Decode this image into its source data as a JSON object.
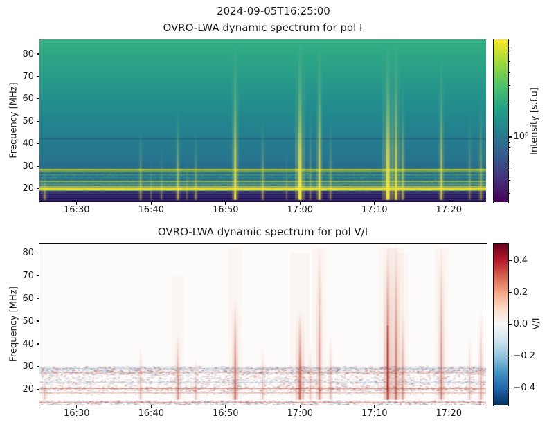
{
  "figure": {
    "suptitle": "2024-09-05T16:25:00",
    "background": "#ffffff",
    "text_color": "#1a1a1a"
  },
  "chart_data": [
    {
      "type": "heatmap",
      "title": "OVRO-LWA dynamic spectrum for pol I",
      "xlabel": "",
      "ylabel": "Frequency [MHz]",
      "time_start": "16:25:00",
      "time_end": "17:25:00",
      "x_total_minutes": 60,
      "xticks": [
        {
          "minute": 5,
          "label": "16:30"
        },
        {
          "minute": 15,
          "label": "16:40"
        },
        {
          "minute": 25,
          "label": "16:50"
        },
        {
          "minute": 35,
          "label": "17:00"
        },
        {
          "minute": 45,
          "label": "17:10"
        },
        {
          "minute": 55,
          "label": "17:20"
        }
      ],
      "yticks": [
        20,
        30,
        40,
        50,
        60,
        70,
        80
      ],
      "ylim": [
        14,
        86.5
      ],
      "grid": false,
      "colorbar": {
        "label": "Intensity [s.f.u]",
        "scale": "log",
        "vmin": 0.25,
        "vmax": 8,
        "major_ticks": [
          {
            "value": 1,
            "label": "10⁰"
          }
        ],
        "minor_tick_values": [
          0.3,
          0.4,
          0.5,
          0.6,
          0.7,
          0.8,
          0.9,
          2,
          3,
          4,
          5,
          6,
          7
        ],
        "colormap": "viridis",
        "stops": [
          {
            "pos": 0,
            "color": "#440154"
          },
          {
            "pos": 0.14,
            "color": "#46327e"
          },
          {
            "pos": 0.29,
            "color": "#365c8d"
          },
          {
            "pos": 0.43,
            "color": "#277f8e"
          },
          {
            "pos": 0.57,
            "color": "#1fa187"
          },
          {
            "pos": 0.71,
            "color": "#4ac16d"
          },
          {
            "pos": 0.86,
            "color": "#a0da39"
          },
          {
            "pos": 1,
            "color": "#fde725"
          }
        ]
      },
      "background_gradient": [
        {
          "f": 86.5,
          "color": "#35b286"
        },
        {
          "f": 80,
          "color": "#2da784"
        },
        {
          "f": 70,
          "color": "#299c89"
        },
        {
          "f": 60,
          "color": "#24908d"
        },
        {
          "f": 50,
          "color": "#22858e"
        },
        {
          "f": 42,
          "color": "#257d8e"
        },
        {
          "f": 35,
          "color": "#27778e"
        },
        {
          "f": 30,
          "color": "#296f8e"
        },
        {
          "f": 14,
          "color": "#2d6a8e"
        }
      ],
      "bands": [
        {
          "f_hi": 31.6,
          "f_lo": 28.9,
          "color": "#1f6a86",
          "alpha": 0.3
        },
        {
          "f_hi": 28.75,
          "f_lo": 28.05,
          "color": "#e2e31f",
          "alpha": 0.9
        },
        {
          "f_hi": 27.8,
          "f_lo": 27.3,
          "color": "#b5de2b",
          "alpha": 0.5
        },
        {
          "f_hi": 26.4,
          "f_lo": 25.9,
          "color": "#6ece58",
          "alpha": 0.42
        },
        {
          "f_hi": 25.1,
          "f_lo": 24.6,
          "color": "#35b779",
          "alpha": 0.32
        },
        {
          "f_hi": 23.5,
          "f_lo": 22.9,
          "color": "#c9e020",
          "alpha": 0.65
        },
        {
          "f_hi": 22.2,
          "f_lo": 21.7,
          "color": "#8ed645",
          "alpha": 0.48
        },
        {
          "f_hi": 21.1,
          "f_lo": 20.6,
          "color": "#e8e33a",
          "alpha": 0.78
        },
        {
          "f_hi": 20.4,
          "f_lo": 19.4,
          "color": "#f4e626",
          "alpha": 0.95
        },
        {
          "f_hi": 19.4,
          "f_lo": 18.95,
          "color": "#a2d93c",
          "alpha": 0.7
        },
        {
          "f_hi": 18.95,
          "f_lo": 14.0,
          "color": "#3b2a72",
          "alpha": 1.0
        },
        {
          "f_hi": 18.6,
          "f_lo": 18.3,
          "color": "#24195a",
          "alpha": 1.0
        },
        {
          "f_hi": 18.0,
          "f_lo": 17.75,
          "color": "#2d6e8e",
          "alpha": 0.55
        },
        {
          "f_hi": 17.6,
          "f_lo": 17.25,
          "color": "#1d1348",
          "alpha": 1.0
        },
        {
          "f_hi": 16.7,
          "f_lo": 16.35,
          "color": "#262061",
          "alpha": 1.0
        },
        {
          "f_hi": 15.9,
          "f_lo": 15.55,
          "color": "#171040",
          "alpha": 1.0
        },
        {
          "f_hi": 15.0,
          "f_lo": 14.65,
          "color": "#231a55",
          "alpha": 1.0
        },
        {
          "f_hi": 14.4,
          "f_lo": 14.0,
          "color": "#120b33",
          "alpha": 1.0
        }
      ],
      "dark_lines": [
        {
          "f": 42.3,
          "color": "rgba(40,55,105,0.45)",
          "h": 1.3
        }
      ],
      "speckle": {
        "f_hi": 28.8,
        "f_lo": 19.0,
        "count": 2600,
        "colors": [
          "#d8e219",
          "#6ece58",
          "#22a884",
          "#b5de2b"
        ]
      },
      "bursts": [
        {
          "t": 0.7,
          "f_top": 28,
          "s": 0.5,
          "w": 2.5
        },
        {
          "t": 13.6,
          "f_top": 48,
          "s": 0.5,
          "w": 2
        },
        {
          "t": 15.0,
          "f_top": 34,
          "s": 0.28,
          "w": 1.5
        },
        {
          "t": 16.4,
          "f_top": 38,
          "s": 0.34,
          "w": 1.8
        },
        {
          "t": 18.6,
          "f_top": 56,
          "s": 0.6,
          "w": 2.2
        },
        {
          "t": 19.8,
          "f_top": 35,
          "s": 0.28,
          "w": 1.5
        },
        {
          "t": 21.0,
          "f_top": 46,
          "s": 0.45,
          "w": 2
        },
        {
          "t": 26.3,
          "f_top": 85,
          "s": 0.95,
          "w": 3
        },
        {
          "t": 30.0,
          "f_top": 52,
          "s": 0.5,
          "w": 2
        },
        {
          "t": 33.2,
          "f_top": 38,
          "s": 0.28,
          "w": 1.5
        },
        {
          "t": 35.0,
          "f_top": 86,
          "s": 1.0,
          "w": 4.5
        },
        {
          "t": 36.4,
          "f_top": 58,
          "s": 0.33,
          "w": 1.8
        },
        {
          "t": 37.6,
          "f_top": 86,
          "s": 0.85,
          "w": 2.8
        },
        {
          "t": 39.1,
          "f_top": 52,
          "s": 0.4,
          "w": 2
        },
        {
          "t": 46.8,
          "f_top": 86,
          "s": 1.0,
          "w": 5
        },
        {
          "t": 47.9,
          "f_top": 86,
          "s": 0.9,
          "w": 3.5
        },
        {
          "t": 48.8,
          "f_top": 68,
          "s": 0.6,
          "w": 2.2
        },
        {
          "t": 54.0,
          "f_top": 80,
          "s": 0.75,
          "w": 2.5
        },
        {
          "t": 57.8,
          "f_top": 55,
          "s": 0.33,
          "w": 2
        },
        {
          "t": 59.3,
          "f_top": 62,
          "s": 0.5,
          "w": 2.5
        }
      ]
    },
    {
      "type": "heatmap",
      "title": "OVRO-LWA dynamic spectrum for pol V/I",
      "xlabel": "",
      "ylabel": "Frequency [MHz]",
      "time_start": "16:25:00",
      "time_end": "17:25:00",
      "x_total_minutes": 60,
      "xticks": [
        {
          "minute": 5,
          "label": "16:30"
        },
        {
          "minute": 15,
          "label": "16:40"
        },
        {
          "minute": 25,
          "label": "16:50"
        },
        {
          "minute": 35,
          "label": "17:00"
        },
        {
          "minute": 45,
          "label": "17:10"
        },
        {
          "minute": 55,
          "label": "17:20"
        }
      ],
      "yticks": [
        20,
        30,
        40,
        50,
        60,
        70,
        80
      ],
      "ylim": [
        13.3,
        84
      ],
      "grid": false,
      "colorbar": {
        "label": "V/I",
        "scale": "linear",
        "vmin": -0.507,
        "vmax": 0.507,
        "ticks": [
          {
            "value": 0.4,
            "label": "0.4"
          },
          {
            "value": 0.2,
            "label": "0.2"
          },
          {
            "value": 0.0,
            "label": "0.0"
          },
          {
            "value": -0.2,
            "label": "−0.2"
          },
          {
            "value": -0.4,
            "label": "−0.4"
          }
        ],
        "colormap": "RdBu_r",
        "stops": [
          {
            "pos": 0,
            "color": "#67001f"
          },
          {
            "pos": 0.1,
            "color": "#b2182b"
          },
          {
            "pos": 0.2,
            "color": "#d6604d"
          },
          {
            "pos": 0.3,
            "color": "#f4a582"
          },
          {
            "pos": 0.4,
            "color": "#fddbc7"
          },
          {
            "pos": 0.5,
            "color": "#f7f7f7"
          },
          {
            "pos": 0.6,
            "color": "#d1e5f0"
          },
          {
            "pos": 0.7,
            "color": "#92c5de"
          },
          {
            "pos": 0.8,
            "color": "#4393c3"
          },
          {
            "pos": 0.9,
            "color": "#2166ac"
          },
          {
            "pos": 1,
            "color": "#053061"
          }
        ]
      },
      "background_color": "#fefcfb",
      "noise_bands": [
        {
          "f_hi": 30.2,
          "f_lo": 28.6,
          "density": 0.5,
          "red_bias": 0.45,
          "alpha": 0.5
        },
        {
          "f_hi": 28.6,
          "f_lo": 26.8,
          "density": 0.55,
          "red_bias": 0.55,
          "alpha": 0.5
        },
        {
          "f_hi": 26.8,
          "f_lo": 24.6,
          "density": 0.35,
          "red_bias": 0.5,
          "alpha": 0.35
        },
        {
          "f_hi": 24.6,
          "f_lo": 22.4,
          "density": 0.4,
          "red_bias": 0.35,
          "alpha": 0.4
        },
        {
          "f_hi": 22.4,
          "f_lo": 21.2,
          "density": 0.3,
          "red_bias": 0.6,
          "alpha": 0.35
        },
        {
          "f_hi": 21.2,
          "f_lo": 19.6,
          "density": 0.45,
          "red_bias": 0.75,
          "alpha": 0.5
        },
        {
          "f_hi": 19.6,
          "f_lo": 17.8,
          "density": 0.28,
          "red_bias": 0.6,
          "alpha": 0.3
        },
        {
          "f_hi": 15.2,
          "f_lo": 13.3,
          "density": 0.6,
          "red_bias": 0.5,
          "alpha": 0.5
        }
      ],
      "rows": [
        {
          "f": 20.7,
          "color": "rgba(190,70,50,0.5)",
          "h": 1.5
        },
        {
          "f": 18.7,
          "color": "rgba(200,90,65,0.4)",
          "h": 1.2
        },
        {
          "f": 14.6,
          "color": "rgba(185,75,55,0.45)",
          "h": 1.2
        },
        {
          "f": 29.4,
          "color": "rgba(110,140,170,0.3)",
          "h": 1.2
        },
        {
          "f": 23.4,
          "color": "rgba(120,150,185,0.28)",
          "h": 1.2
        },
        {
          "f": 27.6,
          "color": "rgba(205,110,85,0.3)",
          "h": 1.2
        }
      ],
      "bursts": [
        {
          "t": 0.7,
          "f_top": 25,
          "vi": 0.3,
          "w": 2.5
        },
        {
          "t": 13.6,
          "f_top": 40,
          "vi": 0.35,
          "w": 2
        },
        {
          "t": 18.6,
          "f_top": 45,
          "vi": 0.5,
          "w": 2.2
        },
        {
          "t": 21.0,
          "f_top": 35,
          "vi": 0.3,
          "w": 2
        },
        {
          "t": 26.3,
          "f_top": 60,
          "vi": 0.75,
          "w": 2.5
        },
        {
          "t": 30.0,
          "f_top": 40,
          "vi": 0.3,
          "w": 2
        },
        {
          "t": 35.0,
          "f_top": 55,
          "vi": 0.8,
          "w": 3.5
        },
        {
          "t": 36.4,
          "f_top": 40,
          "vi": 0.3,
          "w": 2
        },
        {
          "t": 37.6,
          "f_top": 84,
          "vi": 0.55,
          "w": 2.5
        },
        {
          "t": 39.1,
          "f_top": 45,
          "vi": 0.35,
          "w": 2
        },
        {
          "t": 46.8,
          "f_top": 84,
          "vi": 0.95,
          "w": 3.5
        },
        {
          "t": 47.9,
          "f_top": 84,
          "vi": 0.7,
          "w": 3
        },
        {
          "t": 48.8,
          "f_top": 55,
          "vi": 0.5,
          "w": 2.2
        },
        {
          "t": 54.0,
          "f_top": 84,
          "vi": 0.6,
          "w": 2.5
        },
        {
          "t": 57.8,
          "f_top": 45,
          "vi": 0.3,
          "w": 2
        },
        {
          "t": 59.3,
          "f_top": 55,
          "vi": 0.45,
          "w": 2.5
        }
      ]
    }
  ]
}
